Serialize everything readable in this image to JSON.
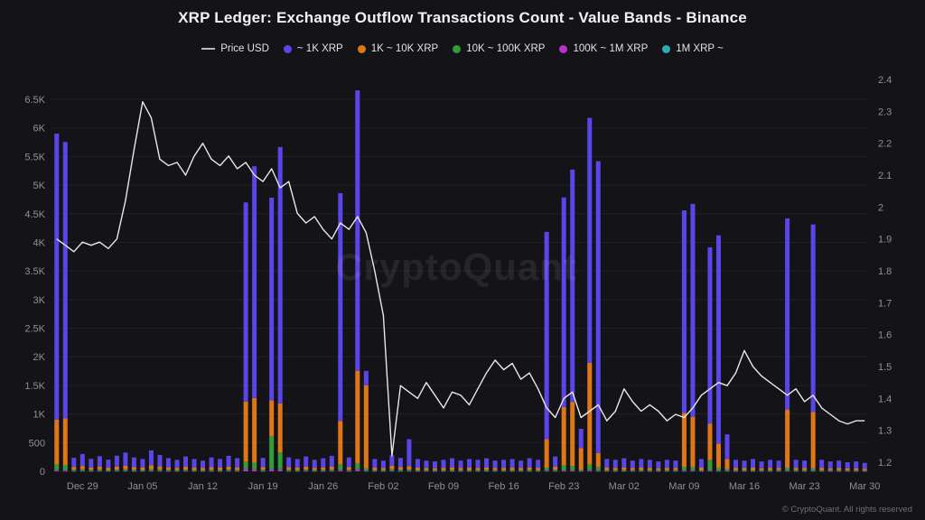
{
  "page": {
    "title": "XRP Ledger: Exchange Outflow Transactions Count - Value Bands - Binance",
    "watermark": "CryptoQuant",
    "footer": "© CryptoQuant. All rights reserved",
    "background": "#141418"
  },
  "legend": [
    {
      "label": "Price USD",
      "color": "#b9b9be",
      "marker": "line"
    },
    {
      "label": "~ 1K XRP",
      "color": "#5a46e8",
      "marker": "dot"
    },
    {
      "label": "1K ~ 10K XRP",
      "color": "#e0761a",
      "marker": "dot"
    },
    {
      "label": "10K ~ 100K XRP",
      "color": "#2f9e37",
      "marker": "dot"
    },
    {
      "label": "100K ~ 1M XRP",
      "color": "#b832c8",
      "marker": "dot"
    },
    {
      "label": "1M XRP ~",
      "color": "#2aabb8",
      "marker": "dot"
    }
  ],
  "axes": {
    "y_left": {
      "labels": [
        "0",
        "500",
        "1K",
        "1.5K",
        "2K",
        "2.5K",
        "3K",
        "3.5K",
        "4K",
        "4.5K",
        "5K",
        "5.5K",
        "6K",
        "6.5K"
      ],
      "values": [
        0,
        500,
        1000,
        1500,
        2000,
        2500,
        3000,
        3500,
        4000,
        4500,
        5000,
        5500,
        6000,
        6500
      ]
    },
    "y_right": {
      "labels": [
        "1.2",
        "1.3",
        "1.4",
        "1.5",
        "1.6",
        "1.7",
        "1.8",
        "1.9",
        "2",
        "2.1",
        "2.2",
        "2.3",
        "2.4"
      ],
      "values": [
        1.2,
        1.3,
        1.4,
        1.5,
        1.6,
        1.7,
        1.8,
        1.9,
        2.0,
        2.1,
        2.2,
        2.3,
        2.4
      ]
    },
    "x": {
      "ticks": [
        {
          "label": "Dec 29",
          "index": 3
        },
        {
          "label": "Jan 05",
          "index": 10
        },
        {
          "label": "Jan 12",
          "index": 17
        },
        {
          "label": "Jan 19",
          "index": 24
        },
        {
          "label": "Jan 26",
          "index": 31
        },
        {
          "label": "Feb 02",
          "index": 38
        },
        {
          "label": "Feb 09",
          "index": 45
        },
        {
          "label": "Feb 16",
          "index": 52
        },
        {
          "label": "Feb 23",
          "index": 59
        },
        {
          "label": "Mar 02",
          "index": 66
        },
        {
          "label": "Mar 09",
          "index": 73
        },
        {
          "label": "Mar 16",
          "index": 80
        },
        {
          "label": "Mar 23",
          "index": 87
        },
        {
          "label": "Mar 30",
          "index": 94
        }
      ]
    }
  },
  "chart_data": {
    "type": "bar",
    "subtype": "stacked-bars-with-line-overlay",
    "title": "XRP Ledger: Exchange Outflow Transactions Count - Value Bands - Binance",
    "y_left_range": [
      0,
      6875
    ],
    "y_right_range": [
      1.2,
      2.4
    ],
    "grid": true,
    "legend_position": "top",
    "x": [
      "Dec 26",
      "Dec 27",
      "Dec 28",
      "Dec 29",
      "Dec 30",
      "Dec 31",
      "Jan 01",
      "Jan 02",
      "Jan 03",
      "Jan 04",
      "Jan 05",
      "Jan 06",
      "Jan 07",
      "Jan 08",
      "Jan 09",
      "Jan 10",
      "Jan 11",
      "Jan 12",
      "Jan 13",
      "Jan 14",
      "Jan 15",
      "Jan 16",
      "Jan 17",
      "Jan 18",
      "Jan 19",
      "Jan 20",
      "Jan 21",
      "Jan 22",
      "Jan 23",
      "Jan 24",
      "Jan 25",
      "Jan 26",
      "Jan 27",
      "Jan 28",
      "Jan 29",
      "Jan 30",
      "Jan 31",
      "Feb 01",
      "Feb 02",
      "Feb 03",
      "Feb 04",
      "Feb 05",
      "Feb 06",
      "Feb 07",
      "Feb 08",
      "Feb 09",
      "Feb 10",
      "Feb 11",
      "Feb 12",
      "Feb 13",
      "Feb 14",
      "Feb 15",
      "Feb 16",
      "Feb 17",
      "Feb 18",
      "Feb 19",
      "Feb 20",
      "Feb 21",
      "Feb 22",
      "Feb 23",
      "Feb 24",
      "Feb 25",
      "Feb 26",
      "Feb 27",
      "Feb 28",
      "Mar 01",
      "Mar 02",
      "Mar 03",
      "Mar 04",
      "Mar 05",
      "Mar 06",
      "Mar 07",
      "Mar 08",
      "Mar 09",
      "Mar 10",
      "Mar 11",
      "Mar 12",
      "Mar 13",
      "Mar 14",
      "Mar 15",
      "Mar 16",
      "Mar 17",
      "Mar 18",
      "Mar 19",
      "Mar 20",
      "Mar 21",
      "Mar 22",
      "Mar 23",
      "Mar 24",
      "Mar 25",
      "Mar 26",
      "Mar 27",
      "Mar 28",
      "Mar 29",
      "Mar 30"
    ],
    "stack_order_bottom_to_top": [
      4,
      3,
      2,
      1,
      0
    ],
    "series": [
      {
        "name": "~ 1K XRP",
        "color": "#5a46e8",
        "values": [
          5000,
          4830,
          160,
          210,
          150,
          180,
          140,
          190,
          230,
          170,
          150,
          260,
          200,
          160,
          140,
          180,
          150,
          130,
          170,
          150,
          190,
          160,
          3480,
          4050,
          160,
          3540,
          4480,
          170,
          150,
          180,
          140,
          160,
          190,
          3980,
          170,
          4900,
          250,
          150,
          130,
          180,
          160,
          470,
          150,
          130,
          120,
          140,
          160,
          130,
          150,
          140,
          160,
          130,
          140,
          150,
          130,
          160,
          140,
          3620,
          180,
          3660,
          4060,
          340,
          4280,
          5100,
          150,
          140,
          160,
          130,
          150,
          140,
          120,
          140,
          130,
          3540,
          3720,
          150,
          3080,
          3640,
          430,
          140,
          130,
          150,
          120,
          140,
          130,
          3340,
          140,
          130,
          3280,
          140,
          120,
          130,
          110,
          120,
          100
        ]
      },
      {
        "name": "1K ~ 10K XRP",
        "color": "#e0761a",
        "values": [
          780,
          820,
          45,
          55,
          40,
          50,
          38,
          52,
          60,
          45,
          40,
          65,
          52,
          42,
          38,
          48,
          40,
          35,
          45,
          40,
          50,
          42,
          1050,
          1130,
          45,
          630,
          860,
          46,
          40,
          48,
          38,
          42,
          50,
          760,
          45,
          1620,
          1450,
          40,
          35,
          60,
          45,
          60,
          40,
          35,
          32,
          38,
          42,
          35,
          40,
          38,
          42,
          35,
          38,
          40,
          35,
          42,
          38,
          500,
          48,
          1020,
          1120,
          380,
          1780,
          240,
          40,
          38,
          42,
          35,
          40,
          38,
          32,
          38,
          35,
          940,
          880,
          40,
          640,
          420,
          180,
          38,
          35,
          40,
          32,
          38,
          35,
          1020,
          38,
          35,
          980,
          38,
          32,
          35,
          30,
          32,
          28
        ]
      },
      {
        "name": "10K ~ 100K XRP",
        "color": "#2f9e37",
        "values": [
          90,
          80,
          20,
          25,
          18,
          22,
          16,
          20,
          24,
          18,
          16,
          26,
          22,
          18,
          15,
          20,
          16,
          14,
          18,
          16,
          20,
          18,
          120,
          110,
          18,
          570,
          290,
          18,
          16,
          20,
          15,
          17,
          20,
          90,
          18,
          100,
          40,
          16,
          14,
          25,
          18,
          20,
          16,
          14,
          13,
          15,
          17,
          14,
          16,
          15,
          17,
          14,
          15,
          16,
          14,
          17,
          15,
          45,
          20,
          80,
          70,
          15,
          90,
          60,
          16,
          15,
          17,
          14,
          16,
          15,
          13,
          15,
          14,
          60,
          55,
          16,
          170,
          50,
          25,
          15,
          14,
          16,
          13,
          15,
          14,
          45,
          15,
          14,
          40,
          15,
          13,
          14,
          12,
          13,
          11
        ]
      },
      {
        "name": "100K ~ 1M XRP",
        "color": "#b832c8",
        "values": [
          25,
          20,
          8,
          10,
          8,
          9,
          7,
          8,
          10,
          8,
          7,
          11,
          9,
          8,
          6,
          8,
          7,
          6,
          8,
          7,
          8,
          7,
          40,
          35,
          8,
          35,
          30,
          8,
          7,
          8,
          6,
          7,
          8,
          25,
          8,
          30,
          12,
          7,
          6,
          10,
          8,
          8,
          7,
          6,
          6,
          6,
          7,
          6,
          7,
          6,
          7,
          6,
          6,
          7,
          6,
          7,
          6,
          15,
          8,
          20,
          18,
          6,
          22,
          16,
          7,
          6,
          7,
          6,
          7,
          6,
          6,
          6,
          6,
          16,
          14,
          7,
          20,
          12,
          8,
          6,
          6,
          7,
          6,
          6,
          6,
          12,
          6,
          6,
          12,
          6,
          6,
          6,
          5,
          5,
          5
        ]
      },
      {
        "name": "1M XRP ~",
        "color": "#2aabb8",
        "values": [
          5,
          5,
          2,
          2,
          1,
          2,
          1,
          2,
          2,
          1,
          1,
          2,
          2,
          1,
          1,
          2,
          1,
          1,
          1,
          1,
          2,
          1,
          8,
          6,
          1,
          6,
          6,
          1,
          1,
          2,
          1,
          1,
          2,
          5,
          1,
          6,
          2,
          1,
          1,
          2,
          1,
          2,
          1,
          1,
          1,
          1,
          1,
          1,
          1,
          1,
          1,
          1,
          1,
          1,
          1,
          1,
          1,
          3,
          2,
          4,
          4,
          1,
          4,
          3,
          1,
          1,
          1,
          1,
          1,
          1,
          1,
          1,
          1,
          3,
          3,
          1,
          4,
          2,
          2,
          1,
          1,
          1,
          1,
          1,
          1,
          2,
          1,
          1,
          2,
          1,
          1,
          1,
          1,
          1,
          1
        ]
      }
    ],
    "line_series": {
      "name": "Price USD",
      "color": "#e8e8ea",
      "axis": "right",
      "values": [
        1.9,
        1.88,
        1.86,
        1.89,
        1.88,
        1.89,
        1.87,
        1.9,
        2.02,
        2.18,
        2.33,
        2.28,
        2.15,
        2.13,
        2.14,
        2.1,
        2.16,
        2.2,
        2.15,
        2.13,
        2.16,
        2.12,
        2.14,
        2.1,
        2.08,
        2.12,
        2.06,
        2.08,
        1.98,
        1.95,
        1.97,
        1.93,
        1.9,
        1.95,
        1.93,
        1.97,
        1.92,
        1.8,
        1.66,
        1.22,
        1.44,
        1.42,
        1.4,
        1.45,
        1.41,
        1.37,
        1.42,
        1.41,
        1.38,
        1.43,
        1.48,
        1.52,
        1.49,
        1.51,
        1.46,
        1.48,
        1.43,
        1.37,
        1.34,
        1.4,
        1.42,
        1.34,
        1.36,
        1.38,
        1.33,
        1.36,
        1.43,
        1.39,
        1.36,
        1.38,
        1.36,
        1.33,
        1.35,
        1.34,
        1.37,
        1.41,
        1.43,
        1.45,
        1.44,
        1.48,
        1.55,
        1.5,
        1.47,
        1.45,
        1.43,
        1.41,
        1.43,
        1.39,
        1.41,
        1.37,
        1.35,
        1.33,
        1.32,
        1.33,
        1.33
      ]
    }
  }
}
